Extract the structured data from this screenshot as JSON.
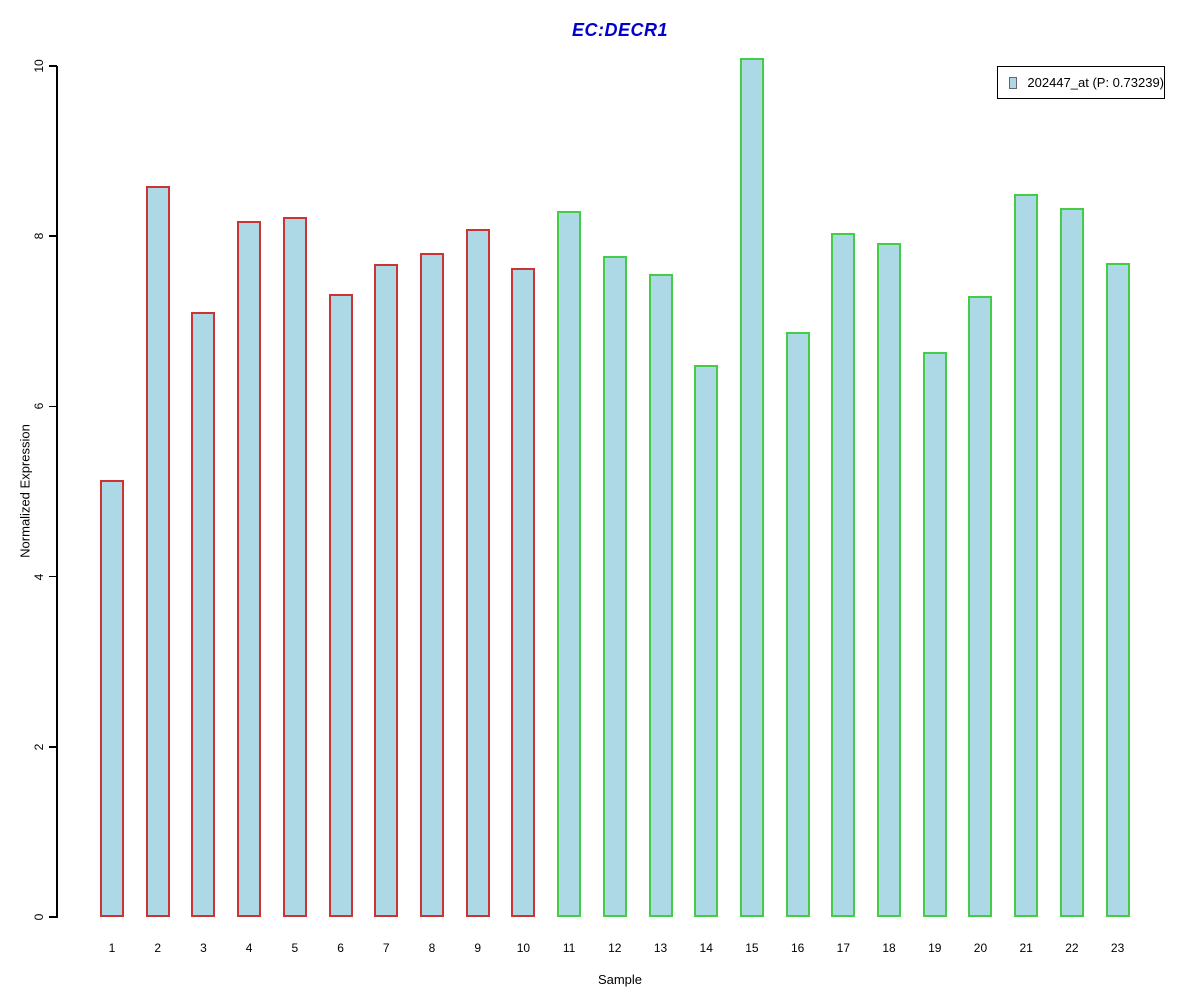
{
  "title": {
    "text": "EC:DECR1",
    "color": "#0000CC"
  },
  "y_axis": {
    "label": "Normalized Expression"
  },
  "x_axis": {
    "label": "Sample"
  },
  "legend": {
    "label": "202447_at (P: 0.73239)",
    "swatch_fill": "#ADD8E6",
    "swatch_border": "#666666"
  },
  "chart_data": {
    "type": "bar",
    "title": "EC:DECR1",
    "xlabel": "Sample",
    "ylabel": "Normalized Expression",
    "ylim": [
      0,
      10
    ],
    "yticks": [
      0,
      2,
      4,
      6,
      8,
      10
    ],
    "grid": false,
    "legend_position": "top-right",
    "categories": [
      "1",
      "2",
      "3",
      "4",
      "5",
      "6",
      "7",
      "8",
      "9",
      "10",
      "11",
      "12",
      "13",
      "14",
      "15",
      "16",
      "17",
      "18",
      "19",
      "20",
      "21",
      "22",
      "23"
    ],
    "series": [
      {
        "name": "202447_at (P: 0.73239)",
        "values": [
          5.13,
          8.59,
          7.11,
          8.18,
          8.23,
          7.32,
          7.67,
          7.8,
          8.08,
          7.63,
          8.3,
          7.77,
          7.56,
          6.49,
          10.09,
          6.87,
          8.04,
          7.92,
          6.64,
          7.3,
          8.5,
          8.33,
          7.69
        ]
      }
    ],
    "bar_fill": "#ADD8E6",
    "bar_border_colors": [
      "#CC3333",
      "#CC3333",
      "#CC3333",
      "#CC3333",
      "#CC3333",
      "#CC3333",
      "#CC3333",
      "#CC3333",
      "#CC3333",
      "#CC3333",
      "#44CC44",
      "#44CC44",
      "#44CC44",
      "#44CC44",
      "#44CC44",
      "#44CC44",
      "#44CC44",
      "#44CC44",
      "#44CC44",
      "#44CC44",
      "#44CC44",
      "#44CC44",
      "#44CC44"
    ],
    "group_colors": {
      "samples_1_to_10": "#CC3333",
      "samples_11_to_23": "#44CC44"
    }
  }
}
